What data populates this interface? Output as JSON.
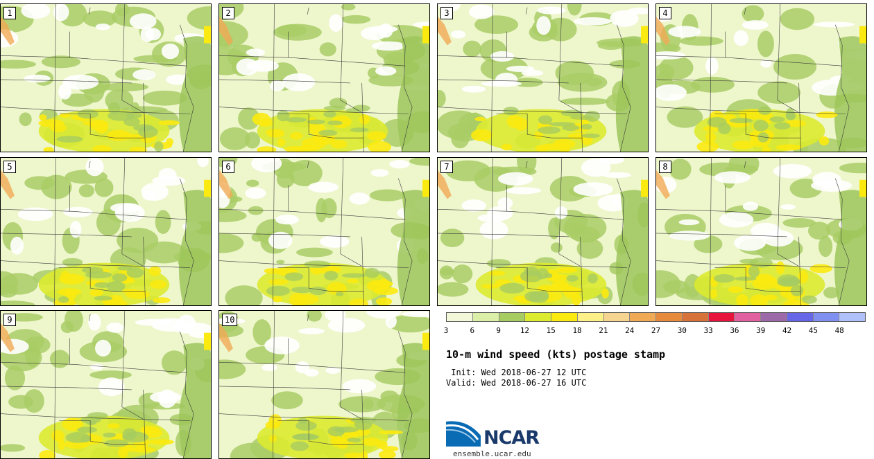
{
  "panels": [
    {
      "label": "1"
    },
    {
      "label": "2"
    },
    {
      "label": "3"
    },
    {
      "label": "4"
    },
    {
      "label": "5"
    },
    {
      "label": "6"
    },
    {
      "label": "7"
    },
    {
      "label": "8"
    },
    {
      "label": "9"
    },
    {
      "label": "10"
    }
  ],
  "colorbar": {
    "ticks": [
      "3",
      "6",
      "9",
      "12",
      "15",
      "18",
      "21",
      "24",
      "27",
      "30",
      "33",
      "36",
      "39",
      "42",
      "45",
      "48"
    ],
    "colors": [
      "#f2f8d9",
      "#dcefa8",
      "#a6cc62",
      "#dcea30",
      "#fbea10",
      "#fdf088",
      "#f5d590",
      "#f0aa55",
      "#e68a3e",
      "#d6723a",
      "#e8143c",
      "#e060a0",
      "#9c6aa8",
      "#6666e8",
      "#8090f0",
      "#b0c0f8"
    ]
  },
  "title": "10-m wind speed (kts) postage stamp",
  "init": " Init: Wed 2018-06-27 12 UTC",
  "valid": "Valid: Wed 2018-06-27 16 UTC",
  "logo": {
    "text": "NCAR",
    "brand_color": "#1a3a6b"
  },
  "site": "ensemble.ucar.edu"
}
